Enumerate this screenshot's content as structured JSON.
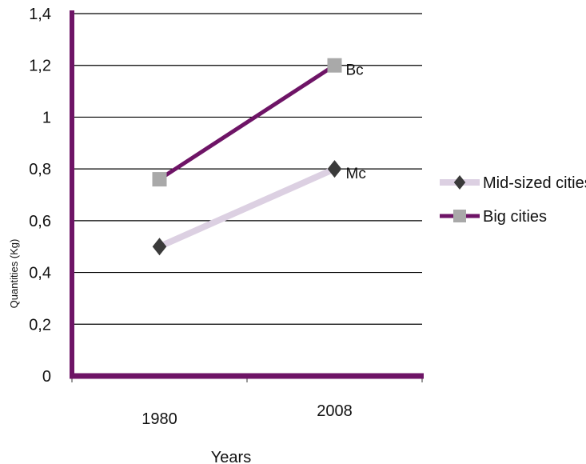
{
  "chart_data": {
    "type": "line",
    "x": [
      "1980",
      "2008"
    ],
    "ylabel": "Quantities (Kg)",
    "xlabel": "Years",
    "ylim": [
      0,
      1.4
    ],
    "ytick_step": 0.2,
    "ytick_labels": [
      "0",
      "0,2",
      "0,4",
      "0,6",
      "0,8",
      "1",
      "1,2",
      "1,4"
    ],
    "grid": true,
    "legend_position": "right",
    "series": [
      {
        "name": "Mid-sized cities",
        "values": [
          0.5,
          0.8
        ],
        "color": "#DCD0E2",
        "marker": "diamond",
        "marker_color": "#3A3A3A",
        "end_label": "Mc"
      },
      {
        "name": "Big cities",
        "values": [
          0.76,
          1.2
        ],
        "color": "#6E1466",
        "marker": "square",
        "marker_color": "#A9A9A9",
        "end_label": "Bc"
      }
    ],
    "axis_color": "#6E1466"
  }
}
